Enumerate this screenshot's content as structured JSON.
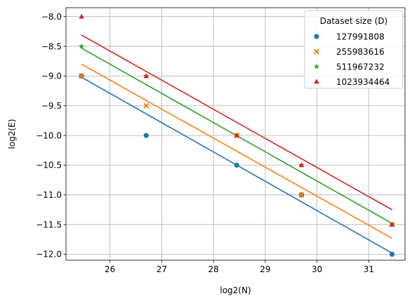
{
  "chart_data": {
    "type": "scatter",
    "xlabel": "log2(N)",
    "ylabel": "log2(E)",
    "xlim": [
      25.15,
      31.7
    ],
    "ylim": [
      -12.1,
      -7.85
    ],
    "xticks": [
      26,
      27,
      28,
      29,
      30,
      31
    ],
    "yticks": [
      -12.0,
      -11.5,
      -11.0,
      -10.5,
      -10.0,
      -9.5,
      -9.0,
      -8.5,
      -8.0
    ],
    "ytick_labels": [
      "−12.0",
      "−11.5",
      "−11.0",
      "−10.5",
      "−10.0",
      "−9.5",
      "−9.0",
      "−8.5",
      "−8.0"
    ],
    "grid": true,
    "legend": {
      "title": "Dataset size (D)",
      "placement": "top-right"
    },
    "x": [
      25.45,
      26.7,
      28.45,
      29.7,
      31.45
    ],
    "series": [
      {
        "name": "127991808",
        "color": "#1f77b4",
        "marker": "circle",
        "y": [
          -9.0,
          -10.0,
          -10.5,
          -11.0,
          -12.0
        ],
        "fit": [
          [
            25.45,
            -9.02
          ],
          [
            31.45,
            -11.98
          ]
        ]
      },
      {
        "name": "255983616",
        "color": "#ff7f0e",
        "marker": "x",
        "y": [
          -9.0,
          -9.5,
          -10.0,
          -11.0,
          -11.5
        ],
        "fit": [
          [
            25.45,
            -8.8
          ],
          [
            31.45,
            -11.73
          ]
        ]
      },
      {
        "name": "511967232",
        "color": "#2ca02c",
        "marker": "star",
        "y": [
          -8.5,
          -9.0,
          -10.0,
          -10.5,
          -11.5
        ],
        "fit": [
          [
            25.45,
            -8.53
          ],
          [
            31.45,
            -11.48
          ]
        ]
      },
      {
        "name": "1023934464",
        "color": "#d62728",
        "marker": "triangle",
        "y": [
          -8.0,
          -9.0,
          -10.0,
          -10.5,
          -11.5
        ],
        "fit": [
          [
            25.45,
            -8.31
          ],
          [
            31.45,
            -11.25
          ]
        ]
      }
    ]
  }
}
